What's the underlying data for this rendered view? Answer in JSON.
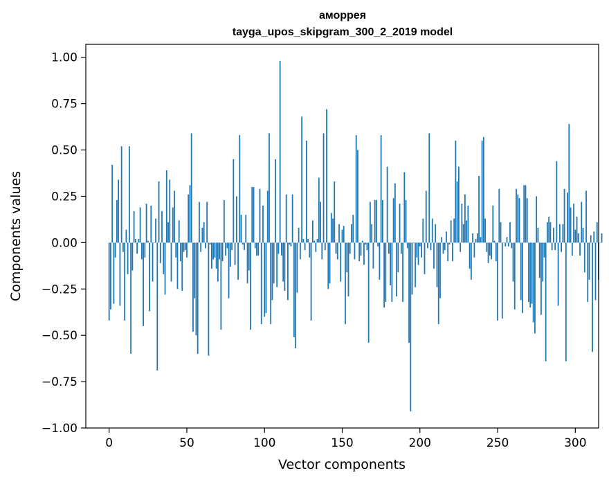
{
  "chart_data": {
    "type": "bar",
    "title": "аморрея",
    "subtitle": "tayga_upos_skipgram_300_2_2019 model",
    "xlabel": "Vector components",
    "ylabel": "Components values",
    "xlim": [
      -15,
      315
    ],
    "ylim": [
      -1.0,
      1.07
    ],
    "xticks": [
      0,
      50,
      100,
      150,
      200,
      250,
      300
    ],
    "yticks": [
      -1.0,
      -0.75,
      -0.5,
      -0.25,
      0.0,
      0.25,
      0.5,
      0.75,
      1.0
    ],
    "ytick_labels": [
      "−1.00",
      "−0.75",
      "−0.50",
      "−0.25",
      "0.00",
      "0.25",
      "0.50",
      "0.75",
      "1.00"
    ],
    "xtick_labels": [
      "0",
      "50",
      "100",
      "150",
      "200",
      "250",
      "300"
    ],
    "bar_color": "#1f77b4",
    "grid": false,
    "values": [
      -0.42,
      -0.36,
      0.42,
      -0.33,
      -0.08,
      0.23,
      0.34,
      -0.34,
      0.52,
      -0.05,
      -0.42,
      0.07,
      -0.17,
      0.52,
      -0.6,
      -0.15,
      0.17,
      0.02,
      -0.06,
      0.02,
      0.19,
      -0.09,
      -0.45,
      -0.08,
      0.21,
      0.01,
      -0.37,
      0.2,
      -0.21,
      0.0,
      0.13,
      -0.69,
      0.33,
      -0.11,
      0.17,
      -0.17,
      -0.28,
      0.39,
      0.11,
      0.34,
      -0.21,
      0.19,
      0.28,
      -0.08,
      -0.25,
      0.12,
      -0.1,
      -0.26,
      -0.05,
      -0.04,
      -0.08,
      0.26,
      0.31,
      0.59,
      -0.48,
      -0.3,
      -0.5,
      -0.6,
      0.22,
      -0.05,
      0.08,
      0.11,
      -0.03,
      0.22,
      -0.61,
      -0.01,
      -0.14,
      -0.09,
      -0.08,
      -0.14,
      -0.21,
      -0.09,
      -0.47,
      -0.1,
      0.23,
      -0.07,
      -0.03,
      -0.3,
      -0.13,
      -0.04,
      0.45,
      -0.12,
      0.25,
      -0.2,
      0.58,
      0.15,
      -0.01,
      -0.04,
      0.15,
      -0.22,
      -0.15,
      -0.47,
      0.3,
      0.3,
      -0.03,
      -0.07,
      -0.07,
      0.29,
      -0.44,
      0.2,
      -0.4,
      -0.38,
      0.28,
      0.59,
      -0.44,
      -0.31,
      -0.22,
      0.45,
      -0.24,
      -0.06,
      0.98,
      -0.07,
      -0.21,
      -0.26,
      0.26,
      -0.31,
      -0.01,
      -0.02,
      0.26,
      -0.51,
      -0.57,
      -0.27,
      0.08,
      -0.09,
      0.68,
      0.02,
      -0.04,
      0.55,
      0.02,
      -0.08,
      -0.42,
      0.12,
      0.01,
      -0.05,
      0.02,
      0.35,
      0.22,
      -0.09,
      0.59,
      -0.04,
      0.72,
      -0.25,
      -0.22,
      0.16,
      0.13,
      0.33,
      -0.06,
      -0.09,
      0.1,
      -0.21,
      0.07,
      0.09,
      -0.44,
      -0.16,
      -0.29,
      -0.06,
      0.1,
      0.15,
      -0.09,
      0.58,
      0.5,
      -0.1,
      -0.07,
      0.01,
      -0.12,
      -0.01,
      -0.04,
      -0.54,
      0.22,
      0.1,
      -0.14,
      0.23,
      0.23,
      -0.02,
      -0.2,
      0.58,
      0.23,
      -0.35,
      -0.32,
      0.41,
      -0.06,
      -0.23,
      -0.32,
      0.24,
      0.32,
      -0.29,
      -0.16,
      0.21,
      -0.06,
      -0.32,
      0.38,
      0.23,
      -0.03,
      -0.54,
      -0.91,
      -0.28,
      0.0,
      -0.24,
      -0.08,
      -0.12,
      -0.02,
      -0.08,
      0.13,
      -0.17,
      0.28,
      -0.03,
      0.59,
      -0.04,
      0.13,
      -0.14,
      0.1,
      -0.24,
      -0.44,
      -0.3,
      0.03,
      -0.06,
      -0.04,
      0.06,
      -0.1,
      -0.01,
      0.12,
      -0.1,
      0.13,
      0.55,
      0.33,
      0.41,
      -0.05,
      0.21,
      0.1,
      0.26,
      0.12,
      0.2,
      -0.14,
      -0.2,
      0.05,
      -0.08,
      0.02,
      0.05,
      0.36,
      0.03,
      0.55,
      0.57,
      0.13,
      -0.05,
      -0.11,
      -0.07,
      -0.09,
      0.2,
      0.01,
      -0.1,
      -0.42,
      0.29,
      0.11,
      -0.41,
      0.0,
      -0.02,
      0.03,
      -0.02,
      0.11,
      -0.03,
      -0.21,
      -0.36,
      0.29,
      0.26,
      0.24,
      -0.31,
      -0.38,
      0.31,
      0.31,
      0.24,
      -0.32,
      -0.35,
      -0.33,
      -0.43,
      -0.49,
      0.25,
      0.08,
      -0.19,
      -0.39,
      -0.21,
      -0.08,
      -0.64,
      0.11,
      0.14,
      0.11,
      -0.04,
      0.08,
      -0.04,
      0.44,
      -0.34,
      0.1,
      -0.05,
      0.1,
      0.29,
      -0.64,
      0.27,
      0.64,
      0.19,
      -0.07,
      0.21,
      0.07,
      0.14,
      0.05,
      -0.07,
      0.22,
      0.08,
      -0.16,
      0.28,
      -0.32,
      -0.2,
      0.04,
      -0.59,
      0.06,
      -0.31,
      0.11,
      -0.2,
      0.0,
      0.05
    ]
  }
}
